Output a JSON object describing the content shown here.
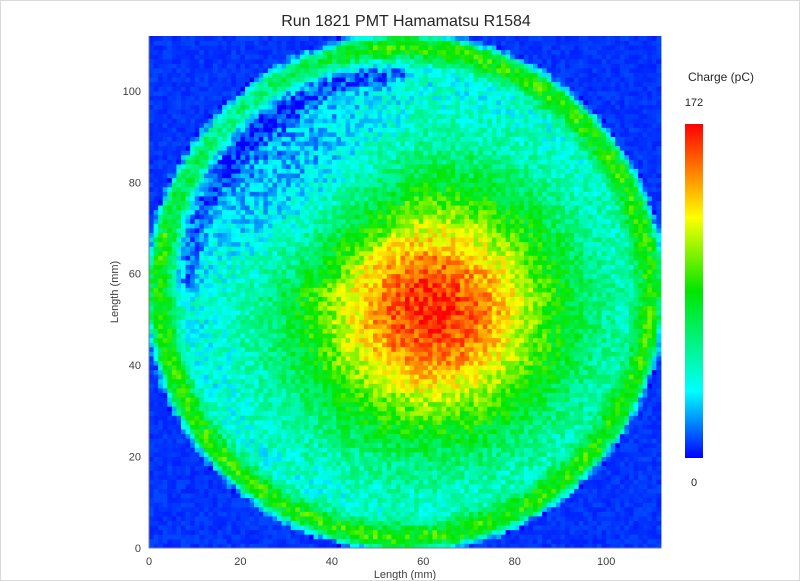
{
  "chart_data": {
    "type": "heatmap",
    "title": "Run 1821 PMT Hamamatsu R1584",
    "xlabel": "Length (mm)",
    "ylabel": "Length (mm)",
    "xlim": [
      0,
      112
    ],
    "ylim": [
      0,
      112
    ],
    "x_ticks": [
      0,
      20,
      40,
      60,
      80,
      100
    ],
    "y_ticks": [
      0,
      20,
      40,
      60,
      80,
      100
    ],
    "grid": false,
    "colorbar": {
      "title": "Charge (pC)",
      "min": 0,
      "max": 172,
      "min_label": "0",
      "max_label": "172",
      "colormap": [
        "#0000ff",
        "#00ffff",
        "#00e600",
        "#ffff00",
        "#ff7f00",
        "#ff0000"
      ]
    },
    "field_summary": {
      "hotspot_center": [
        62,
        52
      ],
      "hotspot_peak": 165,
      "photocathode_radius": 56,
      "outside_value": 10,
      "edge_ring_value": 90,
      "upper_left_dim_region_value": 60,
      "grid_cells": 112
    }
  }
}
